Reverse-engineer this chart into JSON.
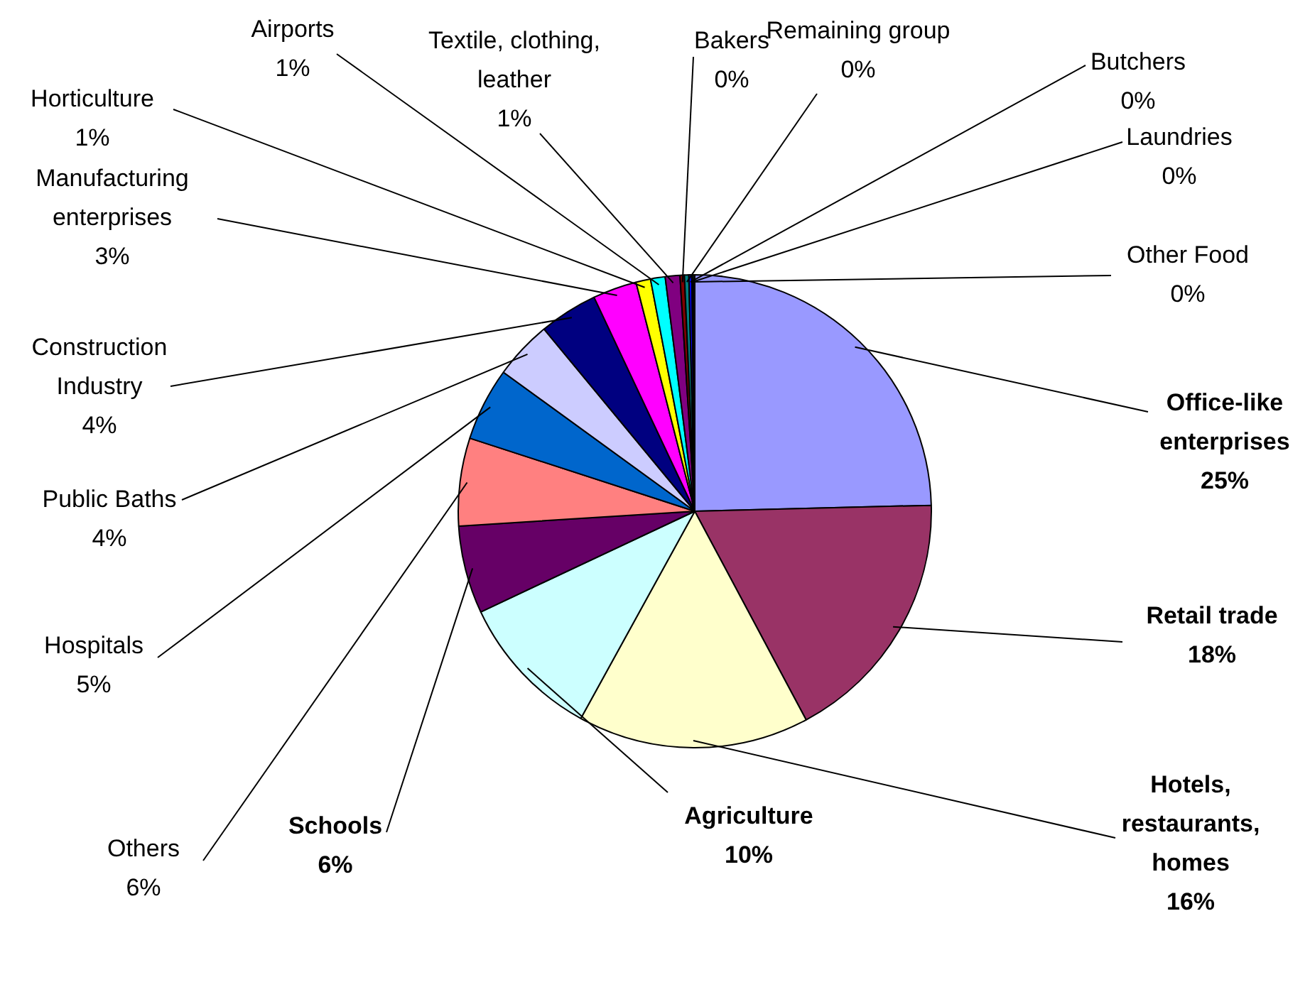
{
  "chart_data": {
    "type": "pie",
    "categories": [
      "Office-like enterprises",
      "Retail trade",
      "Hotels, restaurants, homes",
      "Agriculture",
      "Schools",
      "Others",
      "Hospitals",
      "Public Baths",
      "Construction Industry",
      "Manufacturing enterprises",
      "Horticulture",
      "Airports",
      "Textile, clothing, leather",
      "Bakers",
      "Remaining group",
      "Butchers",
      "Laundries",
      "Other Food"
    ],
    "values": [
      24.6,
      17.6,
      15.8,
      10,
      6,
      6,
      5,
      4,
      4,
      3,
      1,
      1,
      1,
      0.3,
      0.3,
      0.2,
      0.1,
      0.1
    ],
    "value_labels": [
      "25%",
      "18%",
      "16%",
      "10%",
      "6%",
      "6%",
      "5%",
      "4%",
      "4%",
      "3%",
      "1%",
      "1%",
      "1%",
      "0%",
      "0%",
      "0%",
      "0%",
      "0%"
    ],
    "colors": [
      "#9999ff",
      "#993366",
      "#ffffcc",
      "#ccffff",
      "#660066",
      "#ff8080",
      "#0066cc",
      "#ccccff",
      "#000080",
      "#ff00ff",
      "#ffff00",
      "#00ffff",
      "#800080",
      "#800000",
      "#008080",
      "#0000ff",
      "#00ccff",
      "#ccffff"
    ],
    "legend": false
  }
}
